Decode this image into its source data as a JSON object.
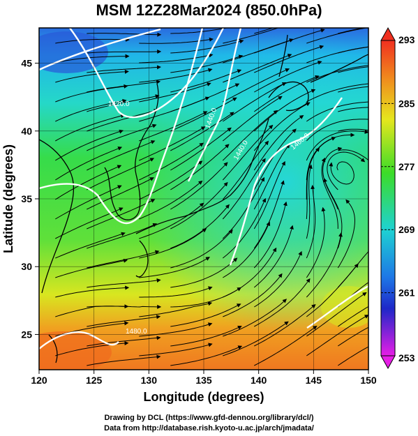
{
  "title": "MSM 12Z28Mar2024 (850.0hPa)",
  "map": {
    "lon_ticks": [
      "120",
      "125",
      "130",
      "135",
      "140",
      "145",
      "150"
    ],
    "lat_ticks": [
      "25",
      "30",
      "35",
      "40",
      "45"
    ],
    "lon_range": [
      120,
      150
    ],
    "lat_range": [
      22.4,
      47.6
    ],
    "xlabel": "Longitude (degrees)",
    "ylabel": "Latitude  (degrees)",
    "contour_labels": [
      "1420.0",
      "1440.0",
      "1440.0",
      "1460.0",
      "1480.0"
    ]
  },
  "colorbar": {
    "ticks": [
      "293",
      "285",
      "277",
      "269",
      "261",
      "253"
    ],
    "range": [
      253,
      293
    ]
  },
  "credits": {
    "line1": "Drawing by DCL (https://www.gfd-dennou.org/library/dcl/)",
    "line2": "Data from http://database.rish.kyoto-u.ac.jp/arch/jmadata/"
  },
  "colors": {
    "cold": "#1e5fd6",
    "cyan": "#1ed2e6",
    "green": "#2fdc3c",
    "yellow": "#e6e61e",
    "orange": "#f08c1e",
    "contour": "#ffffff",
    "streamline": "#000000"
  }
}
